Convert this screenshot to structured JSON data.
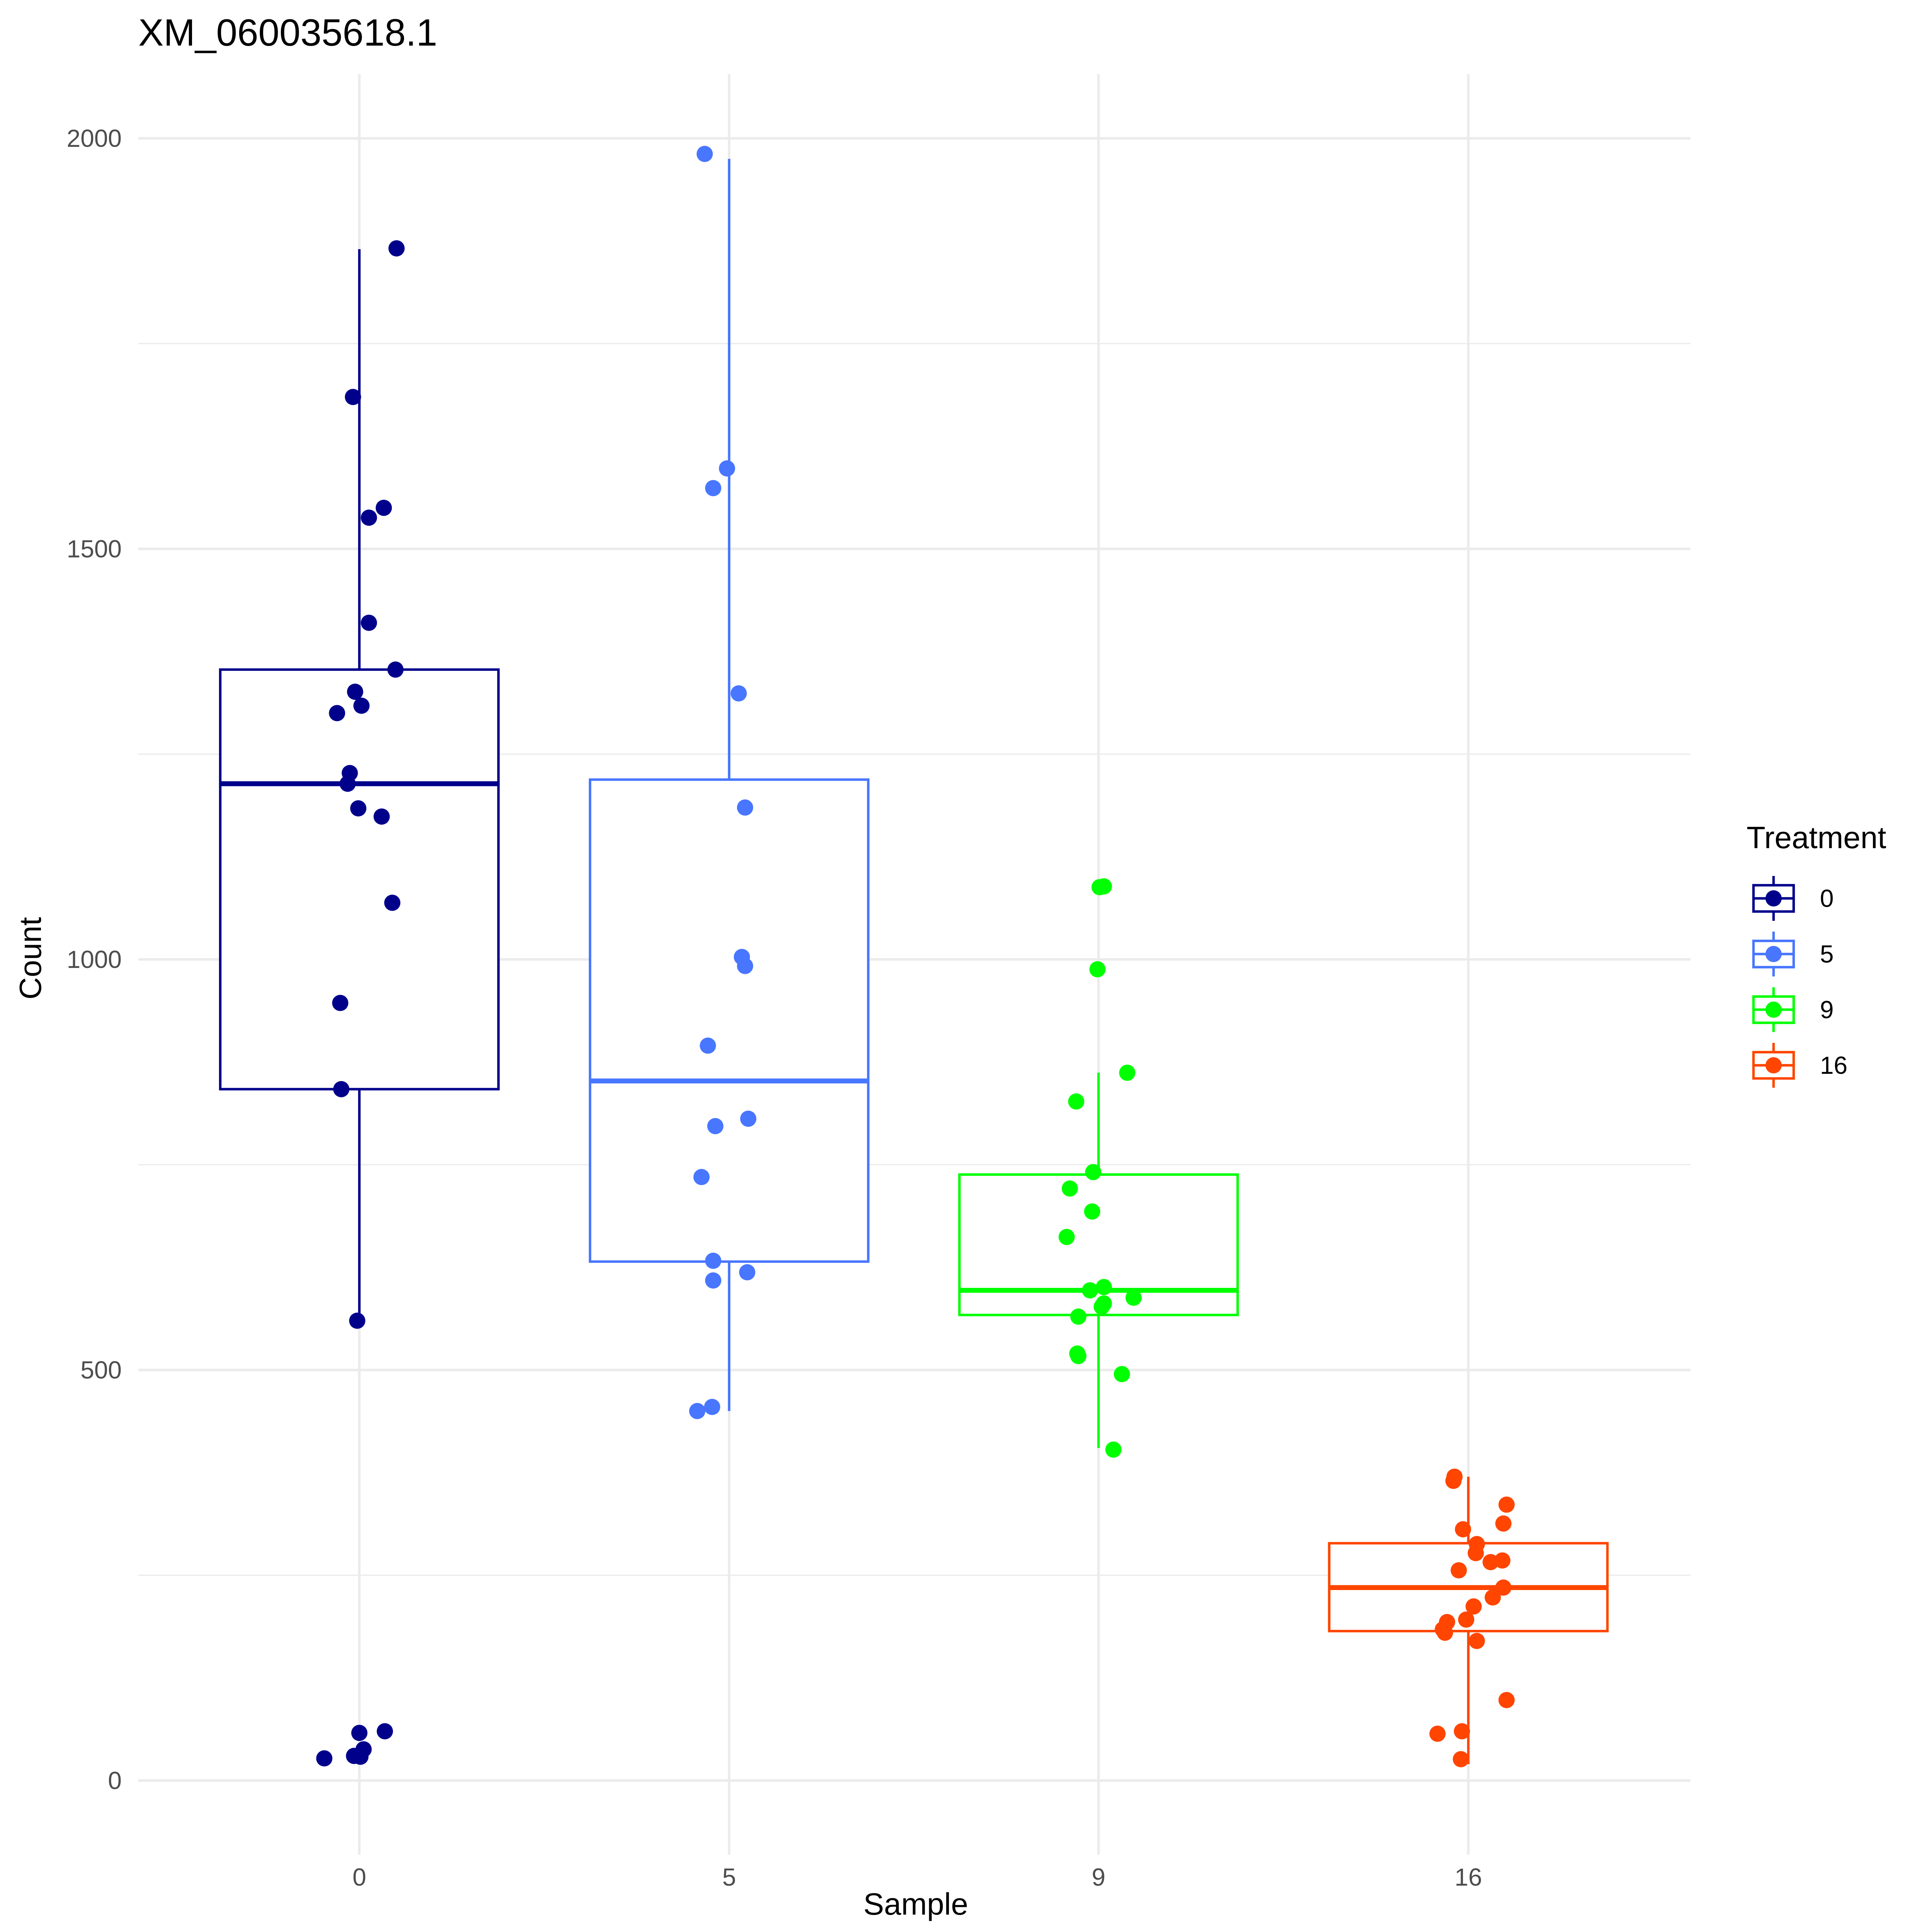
{
  "chart_data": {
    "type": "boxplot",
    "title": "XM_060035618.1",
    "xlabel": "Sample",
    "ylabel": "Count",
    "ylim": [
      -80,
      2075
    ],
    "y_ticks": [
      0,
      500,
      1000,
      1500,
      2000
    ],
    "categories": [
      "0",
      "5",
      "9",
      "16"
    ],
    "grid": true,
    "legend": {
      "title": "Treatment",
      "position": "right",
      "entries": [
        "0",
        "5",
        "9",
        "16"
      ]
    },
    "series": [
      {
        "name": "0",
        "color": "#00008B",
        "box": {
          "whisker_low": 560,
          "q1": 842,
          "median": 1214,
          "q3": 1353,
          "whisker_high": 1865
        },
        "points": [
          {
            "x": 0.35,
            "y": 1866
          },
          {
            "x": -0.06,
            "y": 1685
          },
          {
            "x": 0.23,
            "y": 1550
          },
          {
            "x": 0.09,
            "y": 1538
          },
          {
            "x": 0.09,
            "y": 1410
          },
          {
            "x": 0.34,
            "y": 1353
          },
          {
            "x": -0.04,
            "y": 1326
          },
          {
            "x": 0.02,
            "y": 1309
          },
          {
            "x": -0.21,
            "y": 1300
          },
          {
            "x": -0.09,
            "y": 1227
          },
          {
            "x": -0.11,
            "y": 1214
          },
          {
            "x": -0.01,
            "y": 1184
          },
          {
            "x": 0.21,
            "y": 1174
          },
          {
            "x": 0.31,
            "y": 1069
          },
          {
            "x": -0.18,
            "y": 947
          },
          {
            "x": -0.17,
            "y": 842
          },
          {
            "x": -0.02,
            "y": 560
          },
          {
            "x": 0.24,
            "y": 60
          },
          {
            "x": 0.04,
            "y": 38
          },
          {
            "x": 0.0,
            "y": 58
          },
          {
            "x": -0.33,
            "y": 27
          },
          {
            "x": -0.05,
            "y": 30
          },
          {
            "x": 0.01,
            "y": 29
          }
        ]
      },
      {
        "name": "5",
        "color": "#4876FF",
        "box": {
          "whisker_low": 450,
          "q1": 632,
          "median": 852,
          "q3": 1219,
          "whisker_high": 1975
        },
        "points": [
          {
            "x": -0.23,
            "y": 1981
          },
          {
            "x": -0.02,
            "y": 1598
          },
          {
            "x": -0.15,
            "y": 1574
          },
          {
            "x": 0.09,
            "y": 1324
          },
          {
            "x": 0.15,
            "y": 1185
          },
          {
            "x": 0.12,
            "y": 1003
          },
          {
            "x": 0.15,
            "y": 992
          },
          {
            "x": -0.2,
            "y": 895
          },
          {
            "x": 0.18,
            "y": 806
          },
          {
            "x": -0.13,
            "y": 797
          },
          {
            "x": -0.26,
            "y": 735
          },
          {
            "x": -0.15,
            "y": 633
          },
          {
            "x": 0.17,
            "y": 619
          },
          {
            "x": -0.15,
            "y": 609
          },
          {
            "x": -0.16,
            "y": 455
          },
          {
            "x": -0.3,
            "y": 450
          }
        ]
      },
      {
        "name": "9",
        "color": "#00FF00",
        "box": {
          "whisker_low": 405,
          "q1": 567,
          "median": 597,
          "q3": 738,
          "whisker_high": 862
        },
        "points": [
          {
            "x": 0.05,
            "y": 1089
          },
          {
            "x": 0.01,
            "y": 1088
          },
          {
            "x": -0.01,
            "y": 988
          },
          {
            "x": 0.27,
            "y": 862
          },
          {
            "x": -0.21,
            "y": 827
          },
          {
            "x": -0.05,
            "y": 741
          },
          {
            "x": -0.27,
            "y": 721
          },
          {
            "x": -0.06,
            "y": 693
          },
          {
            "x": -0.3,
            "y": 662
          },
          {
            "x": 0.05,
            "y": 601
          },
          {
            "x": -0.08,
            "y": 597
          },
          {
            "x": 0.33,
            "y": 588
          },
          {
            "x": 0.05,
            "y": 581
          },
          {
            "x": 0.03,
            "y": 577
          },
          {
            "x": -0.19,
            "y": 565
          },
          {
            "x": -0.2,
            "y": 520
          },
          {
            "x": -0.19,
            "y": 517
          },
          {
            "x": 0.22,
            "y": 495
          },
          {
            "x": 0.14,
            "y": 403
          }
        ]
      },
      {
        "name": "16",
        "color": "#FF4500",
        "box": {
          "whisker_low": 20,
          "q1": 182,
          "median": 235,
          "q3": 289,
          "whisker_high": 370
        },
        "points": [
          {
            "x": -0.13,
            "y": 370
          },
          {
            "x": -0.14,
            "y": 365
          },
          {
            "x": 0.36,
            "y": 336
          },
          {
            "x": 0.33,
            "y": 313
          },
          {
            "x": -0.05,
            "y": 306
          },
          {
            "x": 0.08,
            "y": 288
          },
          {
            "x": 0.07,
            "y": 277
          },
          {
            "x": 0.32,
            "y": 268
          },
          {
            "x": 0.21,
            "y": 266
          },
          {
            "x": -0.09,
            "y": 256
          },
          {
            "x": 0.33,
            "y": 235
          },
          {
            "x": 0.23,
            "y": 223
          },
          {
            "x": 0.05,
            "y": 212
          },
          {
            "x": -0.2,
            "y": 193
          },
          {
            "x": -0.02,
            "y": 196
          },
          {
            "x": -0.24,
            "y": 184
          },
          {
            "x": -0.22,
            "y": 180
          },
          {
            "x": 0.08,
            "y": 170
          },
          {
            "x": 0.36,
            "y": 98
          },
          {
            "x": -0.06,
            "y": 60
          },
          {
            "x": -0.29,
            "y": 57
          },
          {
            "x": -0.07,
            "y": 26
          }
        ]
      }
    ]
  }
}
